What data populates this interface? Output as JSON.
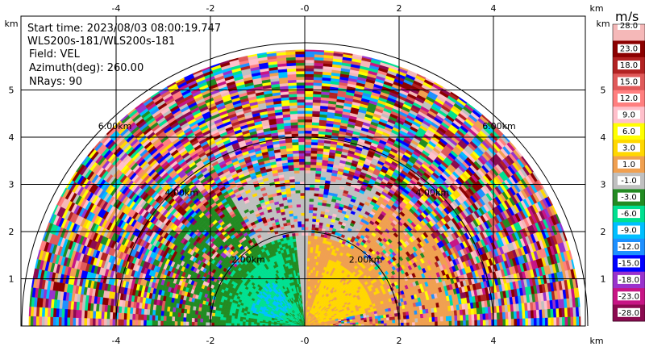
{
  "chart_data": {
    "type": "heatmap",
    "subtype": "radar-ppi-sector",
    "info": {
      "start_time": "Start time: 2023/08/03 08:00:19.747",
      "instrument": "WLS200s-181/WLS200s-181",
      "field": "Field: VEL",
      "azimuth": "Azimuth(deg): 260.00",
      "nrays": "NRays: 90"
    },
    "x_unit": "km",
    "y_unit": "km",
    "xlim": [
      -6,
      6
    ],
    "ylim": [
      0,
      6
    ],
    "x_ticks": [
      "-4",
      "-2",
      "-0",
      "2",
      "4"
    ],
    "x_tick_values": [
      -4,
      -2,
      0,
      2,
      4
    ],
    "y_ticks": [
      "1",
      "2",
      "3",
      "4",
      "5"
    ],
    "y_tick_values": [
      1,
      2,
      3,
      4,
      5
    ],
    "range_rings_km": [
      2,
      4,
      6
    ],
    "range_ring_labels": [
      "2.00km",
      "4.00km",
      "6.00km"
    ],
    "max_range_km": 5.85,
    "colorbar": {
      "title": "m/s",
      "labels": [
        "28.0",
        "23.0",
        "18.0",
        "15.0",
        "12.0",
        "9.0",
        "6.0",
        "3.0",
        "1.0",
        "-1.0",
        "-3.0",
        "-6.0",
        "-9.0",
        "-12.0",
        "-15.0",
        "-18.0",
        "-23.0",
        "-28.0"
      ],
      "colors": [
        "#f5b8b8",
        "#8b0000",
        "#b22222",
        "#e05a5a",
        "#ff7f7f",
        "#ffc0cb",
        "#ffff00",
        "#ffd700",
        "#f0a050",
        "#c0c0c0",
        "#228b22",
        "#00e090",
        "#00bfff",
        "#1e90ff",
        "#0000ff",
        "#9932cc",
        "#c71585",
        "#8b0a50"
      ]
    },
    "description_fields": {
      "near_field_left": "green/cyan negative velocities",
      "near_field_right": "gold/orange positive velocities"
    }
  }
}
